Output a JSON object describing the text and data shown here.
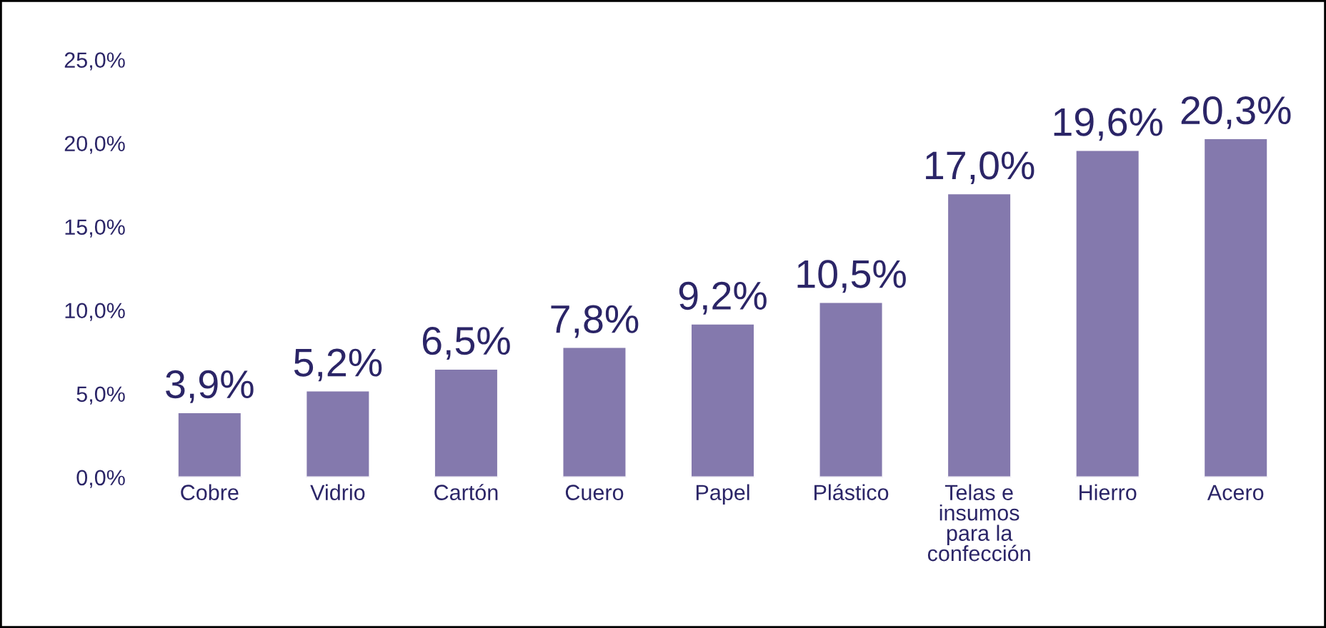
{
  "chart_data": {
    "type": "bar",
    "categories": [
      "Cobre",
      "Vidrio",
      "Cartón",
      "Cuero",
      "Papel",
      "Plástico",
      "Telas e\ninsumos\npara la\nconfección",
      "Hierro",
      "Acero"
    ],
    "values": [
      3.9,
      5.2,
      6.5,
      7.8,
      9.2,
      10.5,
      17.0,
      19.6,
      20.3
    ],
    "value_labels": [
      "3,9%",
      "5,2%",
      "6,5%",
      "7,8%",
      "9,2%",
      "10,5%",
      "17,0%",
      "19,6%",
      "20,3%"
    ],
    "color": "#8479ad",
    "ylim": [
      0,
      25
    ],
    "yticks": [
      {
        "value": 0,
        "label": "0,0%"
      },
      {
        "value": 5,
        "label": "5,0%"
      },
      {
        "value": 10,
        "label": "10,0%"
      },
      {
        "value": 15,
        "label": "15,0%"
      },
      {
        "value": 20,
        "label": "20,0%"
      },
      {
        "value": 25,
        "label": "25,0%"
      }
    ],
    "grid": false,
    "legend": false
  }
}
